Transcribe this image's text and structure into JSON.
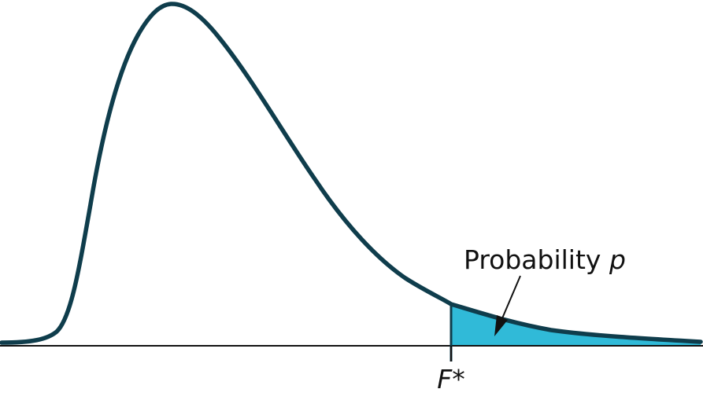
{
  "diagram": {
    "type": "f-distribution-tail-probability",
    "critical_value_label": "F*",
    "probability_label_text": "Probability ",
    "probability_label_var": "p",
    "colors": {
      "curve": "#0f3d4c",
      "shade": "#30bad8",
      "axis": "#111111",
      "text": "#111111"
    }
  }
}
